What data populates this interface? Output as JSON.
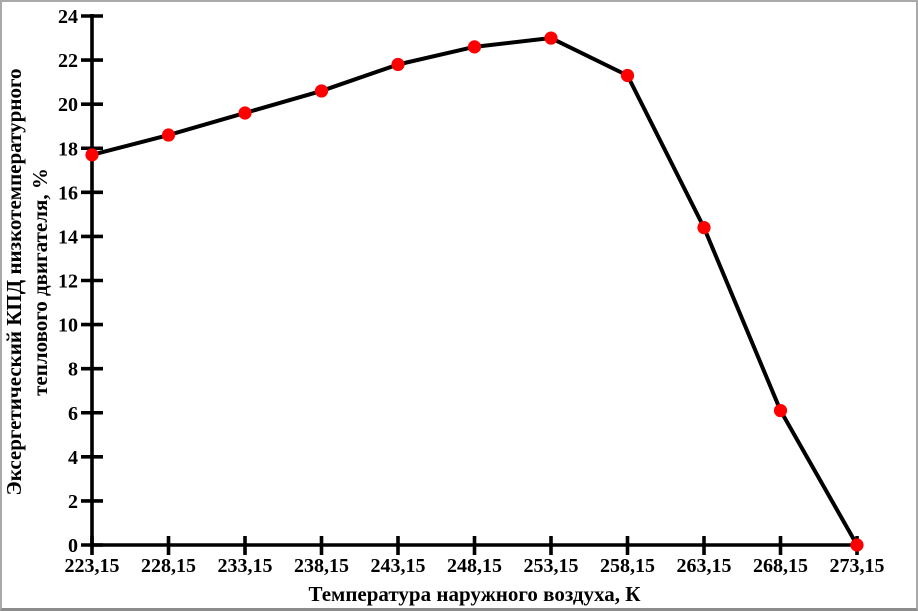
{
  "chart_data": {
    "type": "line",
    "categories": [
      "223,15",
      "228,15",
      "233,15",
      "238,15",
      "243,15",
      "248,15",
      "253,15",
      "258,15",
      "263,15",
      "268,15",
      "273,15"
    ],
    "values": [
      17.7,
      18.6,
      19.6,
      20.6,
      21.8,
      22.6,
      23.0,
      21.3,
      14.4,
      6.1,
      0.0
    ],
    "y_tick_labels": [
      "0",
      "2",
      "4",
      "6",
      "8",
      "10",
      "12",
      "14",
      "16",
      "18",
      "20",
      "22",
      "24"
    ],
    "y_tick_values": [
      0,
      2,
      4,
      6,
      8,
      10,
      12,
      14,
      16,
      18,
      20,
      22,
      24
    ],
    "ylim": [
      0,
      24
    ],
    "xlabel": "Температура наружного воздуха, К",
    "ylabel_lines": [
      "Эксергетический КПД низкотемпературного",
      "теплового двигателя, %"
    ],
    "grid": "off",
    "legend": "none",
    "colors": {
      "line": "#000000",
      "marker": "#FF0000",
      "axis": "#000000",
      "text": "#000000",
      "frame_border": "#A9A9A9"
    }
  }
}
